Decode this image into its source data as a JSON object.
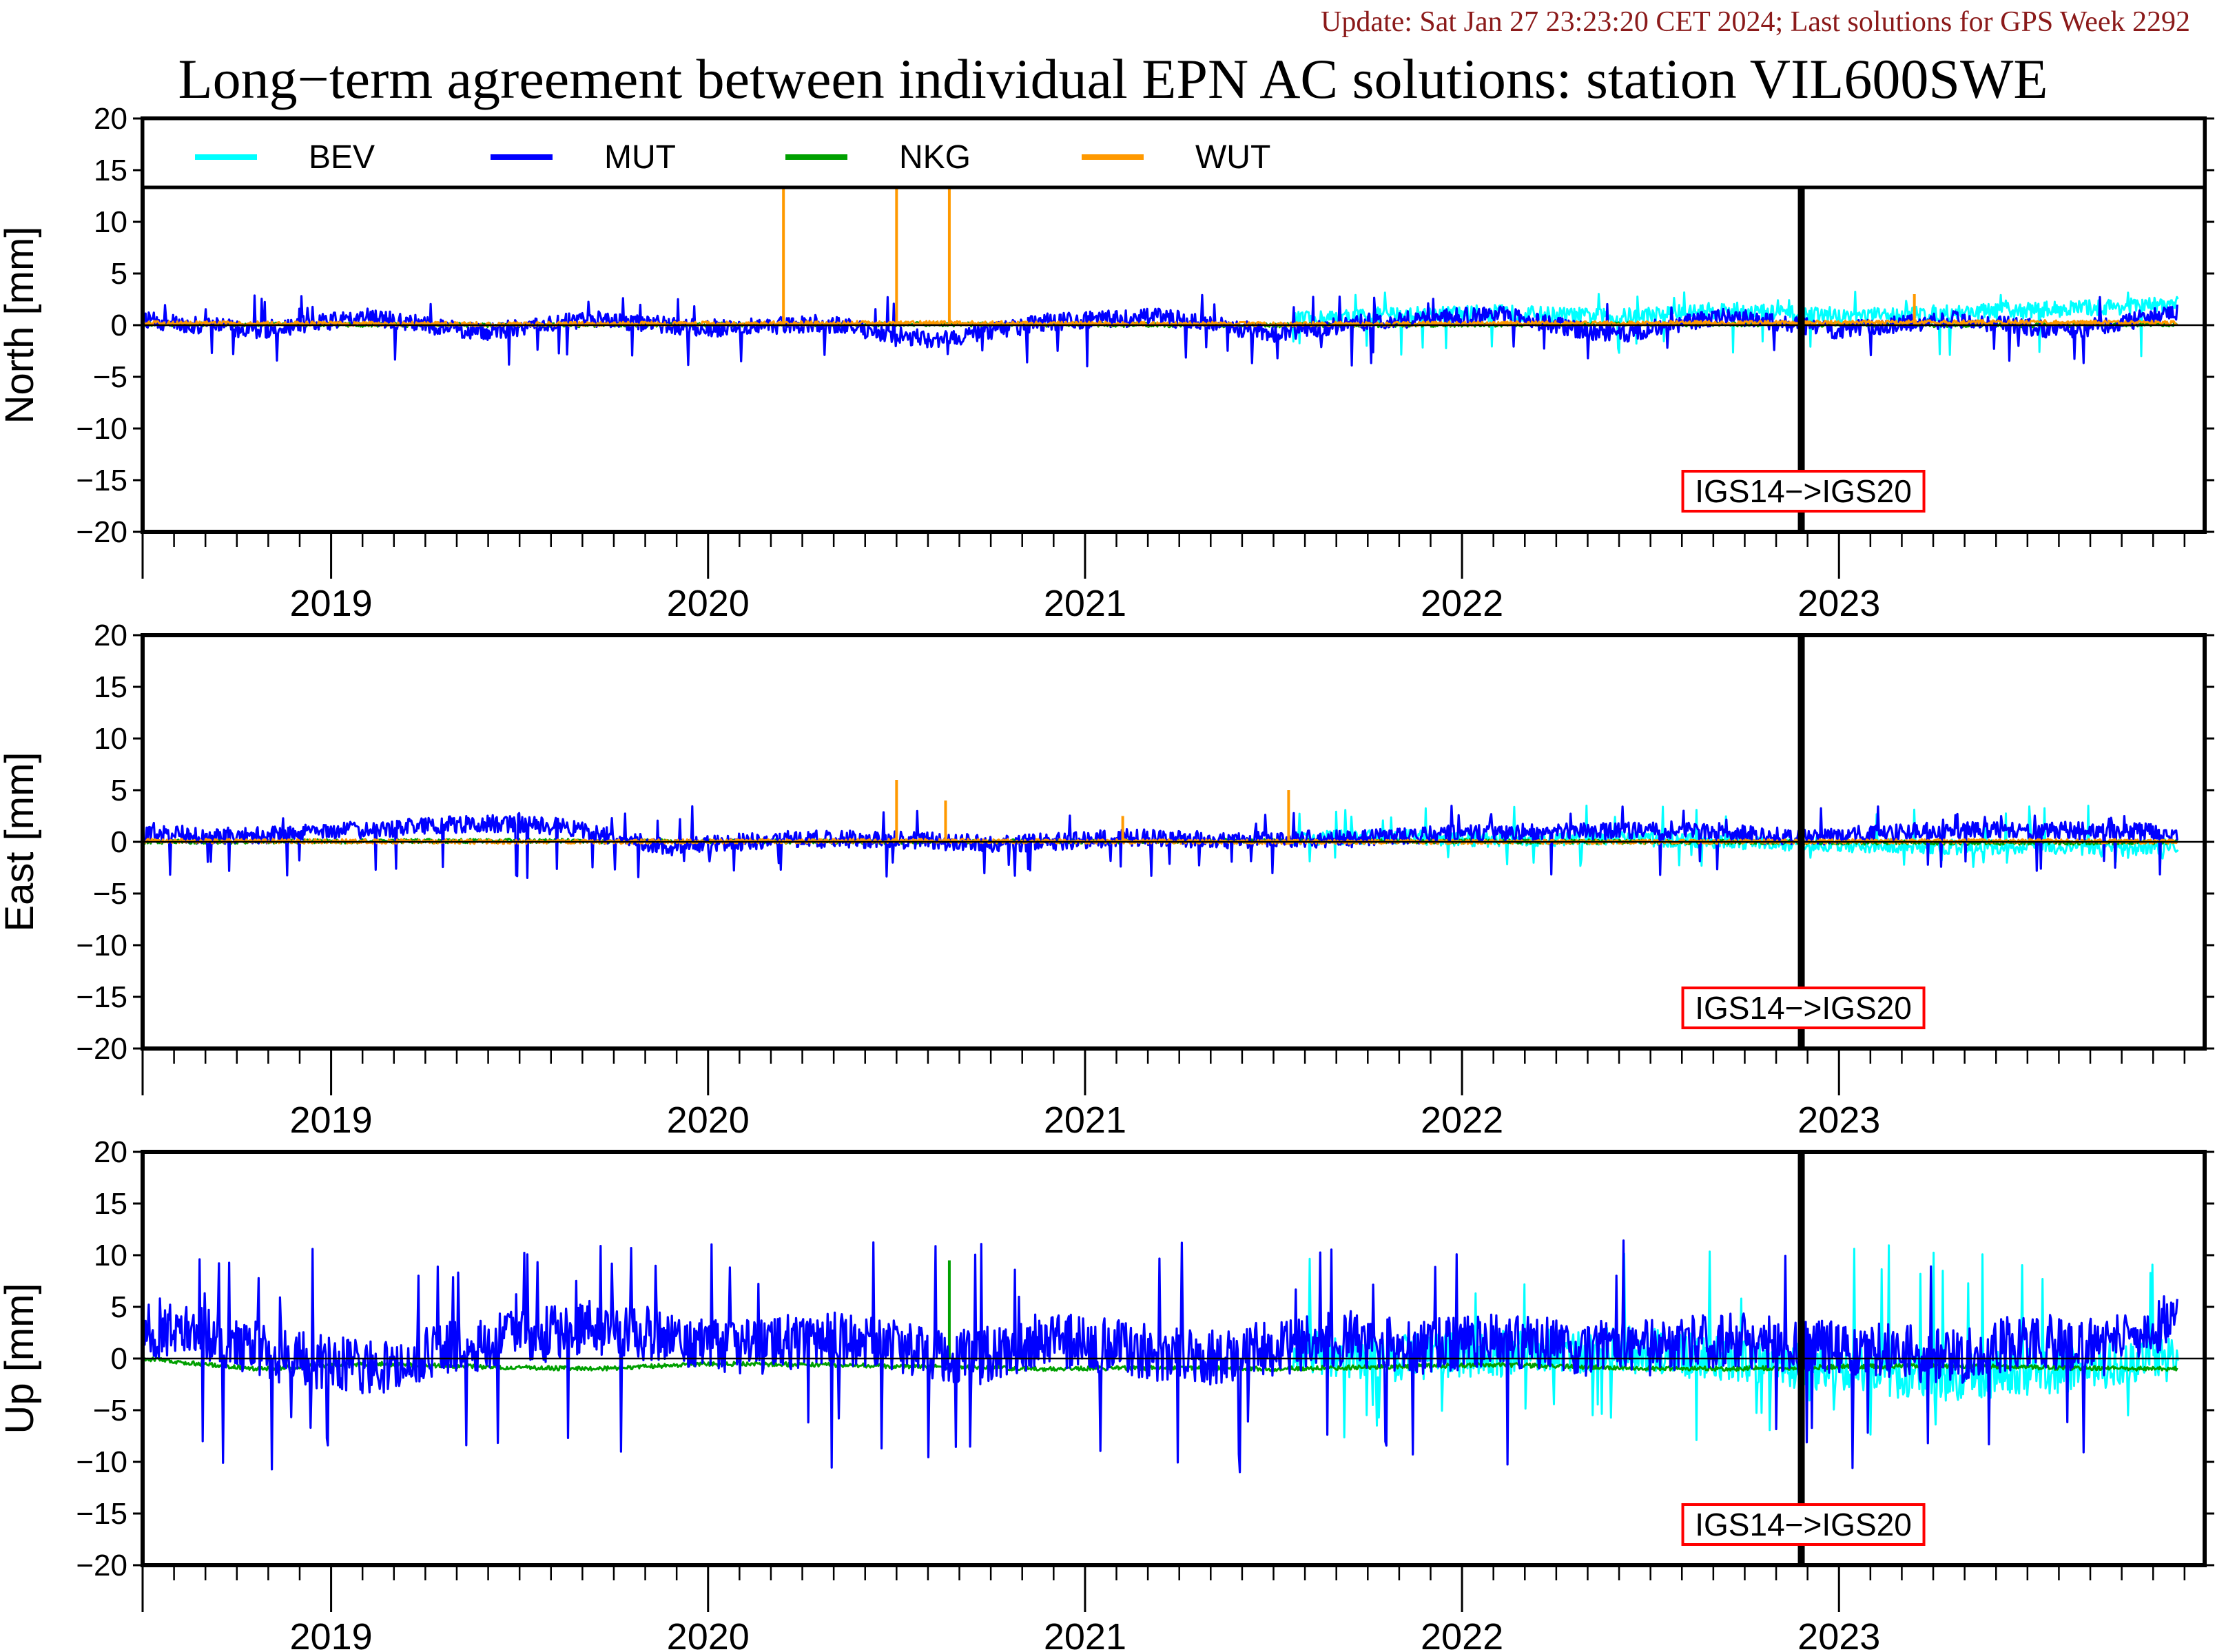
{
  "header": {
    "update_text": "Update: Sat Jan 27 23:23:20 CET 2024; Last solutions for GPS Week 2292",
    "title": "Long−term agreement between individual EPN AC solutions: station VIL600SWE"
  },
  "colors": {
    "BEV": "#00ffff",
    "MUT": "#0000ff",
    "NKG": "#00a000",
    "WUT": "#ff9900",
    "annotation_border": "#ff0000",
    "update_text": "#8b1a1a"
  },
  "chart_data": {
    "type": "line",
    "x_axis": {
      "unit": "year",
      "range": [
        2018.5,
        2023.97
      ],
      "year_labels": [
        "2019",
        "2020",
        "2021",
        "2022",
        "2023"
      ],
      "minor_ticks": "monthly"
    },
    "legend": {
      "placement": "top (inside North panel)",
      "entries": [
        {
          "name": "BEV",
          "color_key": "BEV"
        },
        {
          "name": "MUT",
          "color_key": "MUT"
        },
        {
          "name": "NKG",
          "color_key": "NKG"
        },
        {
          "name": "WUT",
          "color_key": "WUT"
        }
      ]
    },
    "reference_frame_change": {
      "x": 2022.9,
      "label": "IGS14−>IGS20"
    },
    "panels": [
      {
        "id": "north",
        "ylabel": "North [mm]",
        "ylim": [
          -20,
          20
        ],
        "yticks": [
          "20",
          "15",
          "10",
          "5",
          "0",
          "−5",
          "−10",
          "−15",
          "−20"
        ],
        "series": [
          {
            "name": "MUT",
            "x": [
              2018.5,
              2018.8,
              2019.1,
              2019.4,
              2019.7,
              2020.0,
              2020.3,
              2020.6,
              2020.9,
              2021.2,
              2021.5,
              2021.8,
              2022.1,
              2022.4,
              2022.7,
              2023.0,
              2023.3,
              2023.6,
              2023.9
            ],
            "y": [
              0.5,
              -0.5,
              0.8,
              -0.7,
              0.6,
              -0.3,
              0.2,
              -1.5,
              0.3,
              0.8,
              -0.8,
              0.5,
              1.0,
              -1.0,
              0.9,
              -0.5,
              0.6,
              -0.6,
              1.2
            ],
            "extremes": {
              "max": 3,
              "min": -4
            }
          },
          {
            "name": "BEV",
            "x": [
              2021.55,
              2021.8,
              2022.1,
              2022.4,
              2022.7,
              2023.0,
              2023.3,
              2023.6,
              2023.9
            ],
            "y": [
              0.5,
              1.0,
              1.2,
              0.8,
              1.5,
              0.8,
              1.2,
              1.6,
              2.0
            ],
            "extremes": {
              "max": 3.5,
              "min": -3
            }
          },
          {
            "name": "NKG",
            "x": [
              2018.5,
              2019.5,
              2020.5,
              2021.5,
              2022.5,
              2023.5,
              2023.9
            ],
            "y": [
              0.1,
              0.0,
              0.1,
              0.0,
              0.1,
              0.0,
              0.1
            ]
          },
          {
            "name": "WUT",
            "x": [
              2018.5,
              2019.5,
              2020.5,
              2021.5,
              2022.5,
              2023.5,
              2023.9
            ],
            "y": [
              0.2,
              0.1,
              0.2,
              0.1,
              0.2,
              0.3,
              0.2
            ],
            "spikes": [
              {
                "x": 2020.2,
                "y": 25
              },
              {
                "x": 2020.5,
                "y": 25
              },
              {
                "x": 2020.64,
                "y": 25
              },
              {
                "x": 2023.2,
                "y": 3
              }
            ]
          }
        ]
      },
      {
        "id": "east",
        "ylabel": "East [mm]",
        "ylim": [
          -20,
          20
        ],
        "yticks": [
          "20",
          "15",
          "10",
          "5",
          "0",
          "−5",
          "−10",
          "−15",
          "−20"
        ],
        "series": [
          {
            "name": "MUT",
            "x": [
              2018.5,
              2018.8,
              2019.1,
              2019.4,
              2019.6,
              2019.9,
              2020.2,
              2020.5,
              2020.8,
              2021.1,
              2021.4,
              2021.7,
              2022.0,
              2022.3,
              2022.6,
              2022.9,
              2023.2,
              2023.5,
              2023.9
            ],
            "y": [
              0.8,
              0.6,
              1.2,
              1.8,
              1.5,
              -0.5,
              0.3,
              0.2,
              -0.2,
              0.4,
              0.2,
              0.3,
              0.8,
              1.0,
              1.1,
              0.4,
              1.0,
              1.2,
              0.9
            ],
            "extremes": {
              "max": 3.5,
              "min": -3.5
            }
          },
          {
            "name": "BEV",
            "x": [
              2021.55,
              2021.8,
              2022.1,
              2022.4,
              2022.7,
              2023.0,
              2023.3,
              2023.6,
              2023.9
            ],
            "y": [
              0.3,
              0.5,
              0.2,
              0.4,
              0.0,
              -0.3,
              -0.5,
              -0.6,
              -0.4
            ],
            "extremes": {
              "max": 3.5,
              "min": -2.5
            }
          },
          {
            "name": "NKG",
            "x": [
              2018.5,
              2019.5,
              2020.5,
              2021.5,
              2022.5,
              2023.5,
              2023.9
            ],
            "y": [
              0.0,
              0.1,
              0.0,
              0.1,
              0.0,
              -0.1,
              0.0
            ]
          },
          {
            "name": "WUT",
            "x": [
              2018.5,
              2019.5,
              2020.5,
              2021.5,
              2022.5,
              2023.5,
              2023.9
            ],
            "y": [
              0.1,
              0.0,
              0.1,
              0.0,
              0.0,
              0.1,
              0.0
            ],
            "spikes": [
              {
                "x": 2020.5,
                "y": 6
              },
              {
                "x": 2020.63,
                "y": 4
              },
              {
                "x": 2021.1,
                "y": 2.5
              },
              {
                "x": 2021.54,
                "y": 5
              }
            ]
          }
        ]
      },
      {
        "id": "up",
        "ylabel": "Up [mm]",
        "ylim": [
          -20,
          20
        ],
        "yticks": [
          "20",
          "15",
          "10",
          "5",
          "0",
          "−5",
          "−10",
          "−15",
          "−20"
        ],
        "series": [
          {
            "name": "MUT",
            "x": [
              2018.5,
              2018.7,
              2018.9,
              2019.1,
              2019.3,
              2019.5,
              2019.7,
              2019.9,
              2020.1,
              2020.3,
              2020.5,
              2020.7,
              2020.9,
              2021.1,
              2021.3,
              2021.5,
              2021.7,
              2021.9,
              2022.1,
              2022.3,
              2022.5,
              2022.7,
              2022.9,
              2023.1,
              2023.3,
              2023.5,
              2023.7,
              2023.9
            ],
            "y": [
              3,
              2,
              0,
              -1,
              1,
              2,
              3,
              2,
              1,
              2,
              1,
              0,
              2,
              1,
              0,
              1,
              2,
              1,
              2,
              1,
              1,
              2,
              1,
              1,
              0,
              2,
              1,
              4
            ],
            "extremes": {
              "max": 11.5,
              "min": -11
            }
          },
          {
            "name": "BEV",
            "x": [
              2021.55,
              2021.8,
              2022.1,
              2022.4,
              2022.7,
              2023.0,
              2023.3,
              2023.6,
              2023.9
            ],
            "y": [
              1,
              0,
              0.5,
              1,
              0,
              -1,
              -2,
              -1,
              0
            ],
            "extremes": {
              "max": 11,
              "min": -8
            }
          },
          {
            "name": "NKG",
            "x": [
              2018.5,
              2018.8,
              2019.1,
              2019.4,
              2019.7,
              2020.0,
              2020.3,
              2020.6,
              2020.9,
              2021.2,
              2021.5,
              2021.8,
              2022.1,
              2022.4,
              2022.7,
              2023.0,
              2023.3,
              2023.6,
              2023.9
            ],
            "y": [
              0,
              -1,
              -0.5,
              -0.8,
              -1,
              -0.5,
              -0.6,
              -0.8,
              -1,
              -0.9,
              -1,
              -0.8,
              -0.6,
              -0.9,
              -1,
              -0.8,
              -0.7,
              -0.9,
              -1
            ],
            "spikes": [
              {
                "x": 2020.64,
                "y": 9.5
              }
            ]
          },
          {
            "name": "WUT",
            "x": [],
            "y": []
          }
        ]
      }
    ]
  }
}
